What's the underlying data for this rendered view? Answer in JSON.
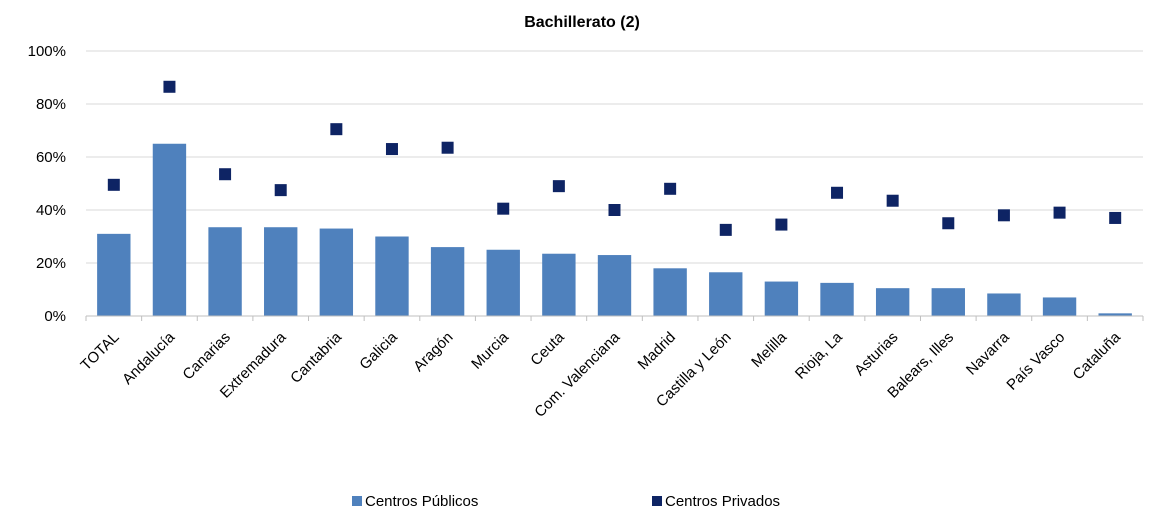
{
  "chart_data": {
    "type": "bar",
    "title": "Bachillerato (2)",
    "xlabel": "",
    "ylabel": "",
    "ylim": [
      0,
      100
    ],
    "y_ticks": [
      "0%",
      "20%",
      "40%",
      "60%",
      "80%",
      "100%"
    ],
    "y_tick_values": [
      0,
      20,
      40,
      60,
      80,
      100
    ],
    "grid": true,
    "legend_position": "bottom",
    "categories": [
      "TOTAL",
      "Andalucía",
      "Canarias",
      "Extremadura",
      "Cantabria",
      "Galicia",
      "Aragón",
      "Murcia",
      "Ceuta",
      "Com. Valenciana",
      "Madrid",
      "Castilla y León",
      "Melilla",
      "Rioja, La",
      "Asturias",
      "Balears, Illes",
      "Navarra",
      "País Vasco",
      "Cataluña"
    ],
    "series": [
      {
        "name": "Centros Públicos",
        "type": "bar",
        "color": "#4f81bd",
        "values": [
          31,
          65,
          33.5,
          33.5,
          33,
          30,
          26,
          25,
          23.5,
          23,
          18,
          16.5,
          13,
          12.5,
          10.5,
          10.5,
          8.5,
          7,
          1
        ]
      },
      {
        "name": "Centros Privados",
        "type": "marker",
        "color": "#0e2464",
        "values": [
          49.5,
          86.5,
          53.5,
          47.5,
          70.5,
          63,
          63.5,
          40.5,
          49,
          40,
          48,
          32.5,
          34.5,
          46.5,
          43.5,
          35,
          38,
          39,
          37
        ]
      }
    ]
  }
}
